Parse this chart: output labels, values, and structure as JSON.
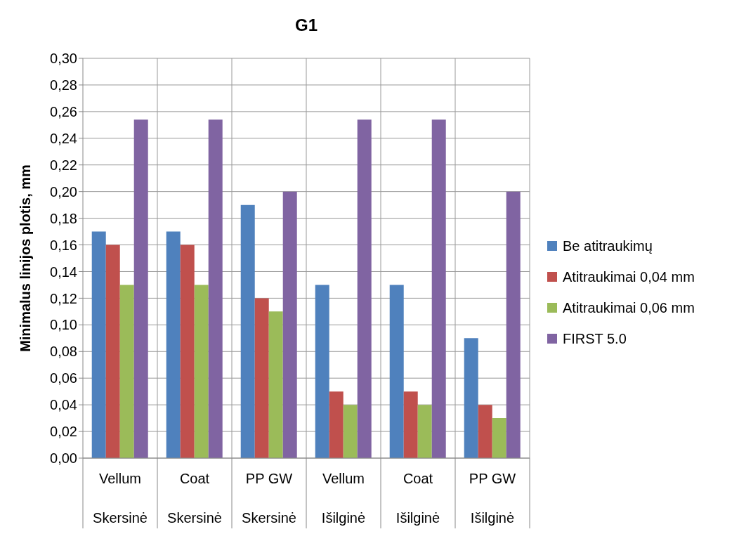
{
  "chart_data": {
    "type": "bar",
    "title": "G1",
    "ylabel": "Minimalus linijos plotis, mm",
    "categories": [
      "Vellum\nSkersinė",
      "Coat\nSkersinė",
      "PP GW\nSkersinė",
      "Vellum\nIšilginė",
      "Coat\nIšilginė",
      "PP GW\nIšilginė"
    ],
    "series": [
      {
        "name": "Be atitraukimų",
        "color": "#4f81bd",
        "values": [
          0.17,
          0.17,
          0.19,
          0.13,
          0.13,
          0.09
        ]
      },
      {
        "name": "Atitraukimai 0,04 mm",
        "color": "#c0504d",
        "values": [
          0.16,
          0.16,
          0.12,
          0.05,
          0.05,
          0.04
        ]
      },
      {
        "name": "Atitraukimai 0,06 mm",
        "color": "#9bbb59",
        "values": [
          0.13,
          0.13,
          0.11,
          0.04,
          0.04,
          0.03
        ]
      },
      {
        "name": "FIRST 5.0",
        "color": "#8064a2",
        "values": [
          0.254,
          0.254,
          0.2,
          0.254,
          0.254,
          0.2
        ]
      }
    ],
    "ylim": [
      0,
      0.3
    ],
    "yticks": [
      {
        "value": 0,
        "label": "0,00"
      },
      {
        "value": 0.02,
        "label": "0,02"
      },
      {
        "value": 0.04,
        "label": "0,04"
      },
      {
        "value": 0.06,
        "label": "0,06"
      },
      {
        "value": 0.08,
        "label": "0,08"
      },
      {
        "value": 0.1,
        "label": "0,10"
      },
      {
        "value": 0.12,
        "label": "0,12"
      },
      {
        "value": 0.14,
        "label": "0,14"
      },
      {
        "value": 0.16,
        "label": "0,16"
      },
      {
        "value": 0.18,
        "label": "0,18"
      },
      {
        "value": 0.2,
        "label": "0,20"
      },
      {
        "value": 0.22,
        "label": "0,22"
      },
      {
        "value": 0.24,
        "label": "0,24"
      },
      {
        "value": 0.26,
        "label": "0,26"
      },
      {
        "value": 0.28,
        "label": "0,28"
      },
      {
        "value": 0.3,
        "label": "0,30"
      }
    ],
    "grid": true,
    "legend": "right"
  }
}
